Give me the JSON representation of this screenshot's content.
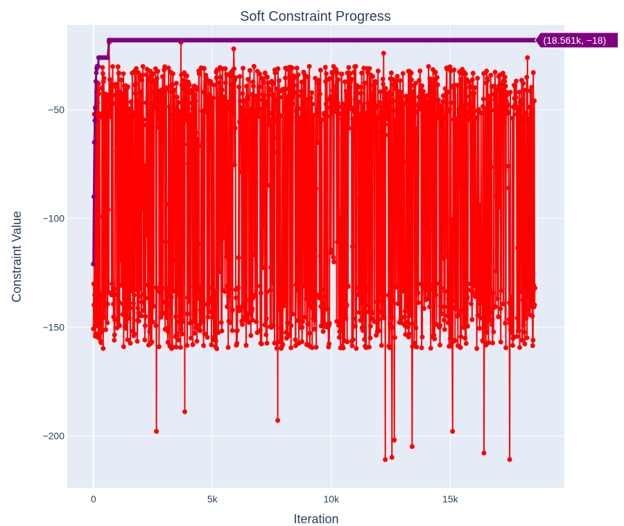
{
  "chart_data": {
    "type": "line",
    "title": "Soft Constraint Progress",
    "xlabel": "Iteration",
    "ylabel": "Constraint Value",
    "xlim": [
      -1100,
      19800
    ],
    "ylim": [
      -224,
      -11
    ],
    "x_ticks": [
      0,
      5000,
      10000,
      15000
    ],
    "x_tick_labels": [
      "0",
      "5k",
      "10k",
      "15k"
    ],
    "y_ticks": [
      -50,
      -100,
      -150,
      -200
    ],
    "y_tick_labels": [
      "−50",
      "−100",
      "−150",
      "−200"
    ],
    "grid": true,
    "background_color": "#e5ecf6",
    "series": [
      {
        "color": "#ff0000",
        "mode": "lines+markers",
        "x_range": [
          0,
          18561
        ],
        "typical_range": [
          -160,
          -30
        ],
        "min_points": [
          {
            "x": 2650,
            "y": -198
          },
          {
            "x": 3840,
            "y": -189
          },
          {
            "x": 7750,
            "y": -193
          },
          {
            "x": 12270,
            "y": -211
          },
          {
            "x": 12550,
            "y": -210
          },
          {
            "x": 12650,
            "y": -202
          },
          {
            "x": 13400,
            "y": -205
          },
          {
            "x": 15100,
            "y": -198
          },
          {
            "x": 16420,
            "y": -208
          },
          {
            "x": 17500,
            "y": -211
          }
        ],
        "max_points": [
          {
            "x": 660,
            "y": -19
          },
          {
            "x": 3680,
            "y": -19
          },
          {
            "x": 5900,
            "y": -22
          },
          {
            "x": 12200,
            "y": -24
          },
          {
            "x": 18250,
            "y": -26
          }
        ]
      },
      {
        "color": "#800080",
        "mode": "lines+markers",
        "points": [
          {
            "x": 0,
            "y": -121
          },
          {
            "x": 20,
            "y": -90
          },
          {
            "x": 40,
            "y": -65
          },
          {
            "x": 60,
            "y": -55
          },
          {
            "x": 80,
            "y": -49
          },
          {
            "x": 100,
            "y": -37
          },
          {
            "x": 120,
            "y": -33
          },
          {
            "x": 140,
            "y": -31
          },
          {
            "x": 160,
            "y": -30
          },
          {
            "x": 200,
            "y": -30
          },
          {
            "x": 220,
            "y": -26
          },
          {
            "x": 300,
            "y": -26
          },
          {
            "x": 400,
            "y": -26
          },
          {
            "x": 500,
            "y": -26
          },
          {
            "x": 600,
            "y": -26
          },
          {
            "x": 660,
            "y": -18
          },
          {
            "x": 18561,
            "y": -18
          }
        ]
      }
    ],
    "hover_label": {
      "text": "(18.561k, −18)",
      "x": 18561,
      "y": -18,
      "color": "#800080"
    }
  }
}
